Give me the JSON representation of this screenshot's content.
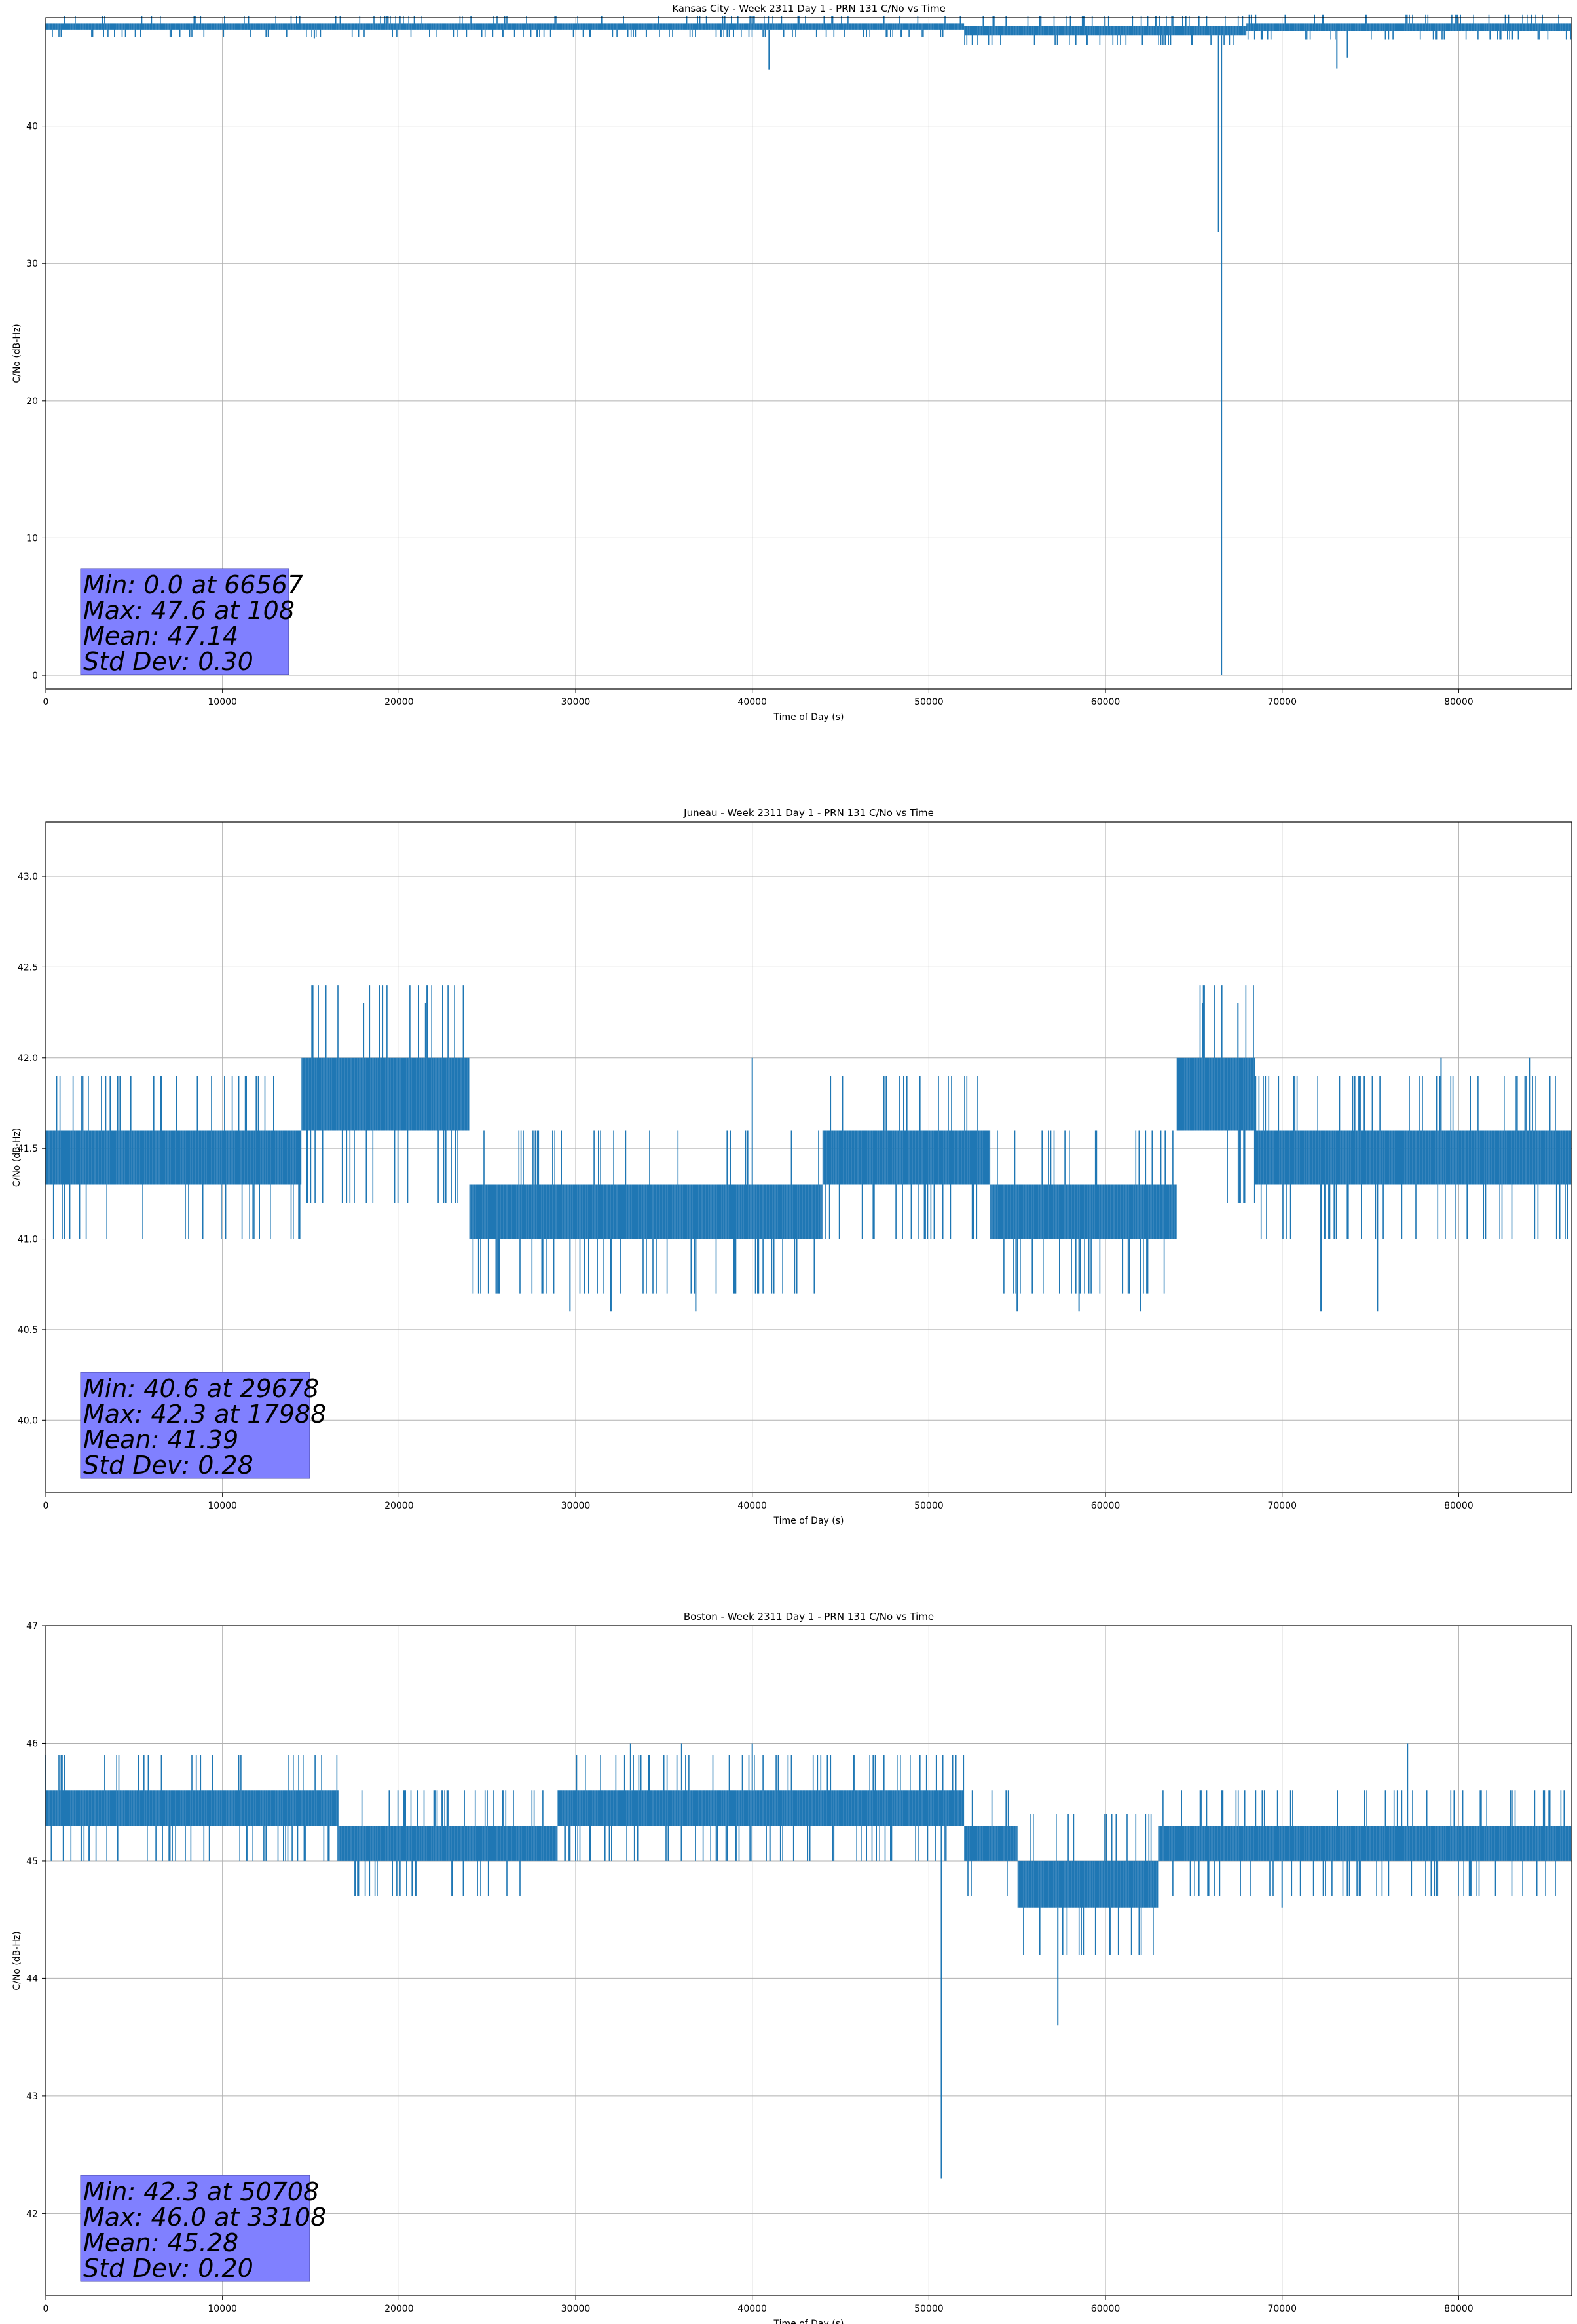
{
  "chart_data": [
    {
      "type": "line",
      "title": "Kansas City - Week 2311 Day 1 - PRN 131 C/No vs Time",
      "xlabel": "Time of Day (s)",
      "ylabel": "C/No (dB-Hz)",
      "xlim": [
        0,
        86400
      ],
      "ylim": [
        -1,
        47.9
      ],
      "xticks": [
        0,
        10000,
        20000,
        30000,
        40000,
        50000,
        60000,
        70000,
        80000
      ],
      "yticks": [
        0,
        10,
        20,
        30,
        40
      ],
      "ytick_labels": [
        "0",
        "10",
        "20",
        "30",
        "40"
      ],
      "grid": true,
      "line_color": "#1f77b4",
      "band": {
        "low": 46.7,
        "high": 47.6
      },
      "band_segments": [
        [
          0,
          47.0,
          47.5
        ],
        [
          52000,
          46.6,
          47.3
        ],
        [
          68000,
          46.9,
          47.5
        ],
        [
          86400,
          46.9,
          47.4
        ]
      ],
      "dips": [
        [
          40950,
          44.1
        ],
        [
          66567,
          0.0
        ],
        [
          66400,
          32.3
        ],
        [
          73100,
          44.2
        ],
        [
          73700,
          45.0
        ],
        [
          15200,
          46.4
        ],
        [
          34000,
          46.5
        ]
      ],
      "stats": [
        "Min: 0.0 at 66567",
        "Max: 47.6 at 108",
        "Mean: 47.14",
        "Std Dev: 0.30"
      ]
    },
    {
      "type": "line",
      "title": "Juneau - Week 2311 Day 1 - PRN 131 C/No vs Time",
      "xlabel": "Time of Day (s)",
      "ylabel": "C/No (dB-Hz)",
      "xlim": [
        0,
        86400
      ],
      "ylim": [
        39.6,
        43.3
      ],
      "xticks": [
        0,
        10000,
        20000,
        30000,
        40000,
        50000,
        60000,
        70000,
        80000
      ],
      "yticks": [
        40.0,
        40.5,
        41.0,
        41.5,
        42.0,
        42.5,
        43.0
      ],
      "ytick_labels": [
        "40.0",
        "40.5",
        "41.0",
        "41.5",
        "42.0",
        "42.5",
        "43.0"
      ],
      "grid": true,
      "line_color": "#1f77b4",
      "band_segments": [
        [
          0,
          41.3,
          41.6
        ],
        [
          14500,
          41.6,
          42.0
        ],
        [
          24000,
          41.0,
          41.3
        ],
        [
          27500,
          41.0,
          41.3
        ],
        [
          44000,
          41.3,
          41.6
        ],
        [
          53500,
          41.0,
          41.3
        ],
        [
          64000,
          41.6,
          42.0
        ],
        [
          68500,
          41.3,
          41.6
        ],
        [
          86400,
          41.3,
          41.6
        ]
      ],
      "dips": [
        [
          29678,
          40.6
        ],
        [
          32000,
          40.6
        ],
        [
          36800,
          40.6
        ],
        [
          55000,
          40.6
        ],
        [
          58500,
          40.6
        ],
        [
          62000,
          40.6
        ],
        [
          72200,
          40.6
        ],
        [
          75400,
          40.6
        ]
      ],
      "spikes": [
        [
          17988,
          42.3
        ],
        [
          21500,
          42.3
        ],
        [
          40000,
          42.0
        ],
        [
          65500,
          42.3
        ],
        [
          67500,
          42.3
        ],
        [
          79000,
          42.0
        ],
        [
          84000,
          42.0
        ]
      ],
      "stats": [
        "Min: 40.6 at 29678",
        "Max: 42.3 at 17988",
        "Mean: 41.39",
        "Std Dev: 0.28"
      ]
    },
    {
      "type": "line",
      "title": "Boston - Week 2311 Day 1 - PRN 131 C/No vs Time",
      "xlabel": "Time of Day (s)",
      "ylabel": "C/No (dB-Hz)",
      "xlim": [
        0,
        86400
      ],
      "ylim": [
        41.3,
        47.0
      ],
      "xticks": [
        0,
        10000,
        20000,
        30000,
        40000,
        50000,
        60000,
        70000,
        80000
      ],
      "yticks": [
        42,
        43,
        44,
        45,
        46,
        47
      ],
      "ytick_labels": [
        "42",
        "43",
        "44",
        "45",
        "46",
        "47"
      ],
      "grid": true,
      "line_color": "#1f77b4",
      "band_segments": [
        [
          0,
          45.3,
          45.6
        ],
        [
          16500,
          45.0,
          45.3
        ],
        [
          29000,
          45.3,
          45.6
        ],
        [
          52000,
          45.0,
          45.3
        ],
        [
          55000,
          44.6,
          45.0
        ],
        [
          63000,
          45.0,
          45.3
        ],
        [
          77000,
          45.0,
          45.3
        ],
        [
          86400,
          45.3,
          45.6
        ]
      ],
      "dips": [
        [
          50708,
          42.3
        ],
        [
          57300,
          43.6
        ],
        [
          2000,
          45.0
        ],
        [
          41000,
          45.0
        ],
        [
          60500,
          44.6
        ],
        [
          70000,
          44.6
        ]
      ],
      "spikes": [
        [
          33108,
          46.0
        ],
        [
          36000,
          46.0
        ],
        [
          40000,
          46.0
        ],
        [
          77100,
          46.0
        ]
      ],
      "stats": [
        "Min: 42.3 at 50708",
        "Max: 46.0 at 33108",
        "Mean: 45.28",
        "Std Dev: 0.20"
      ]
    }
  ]
}
